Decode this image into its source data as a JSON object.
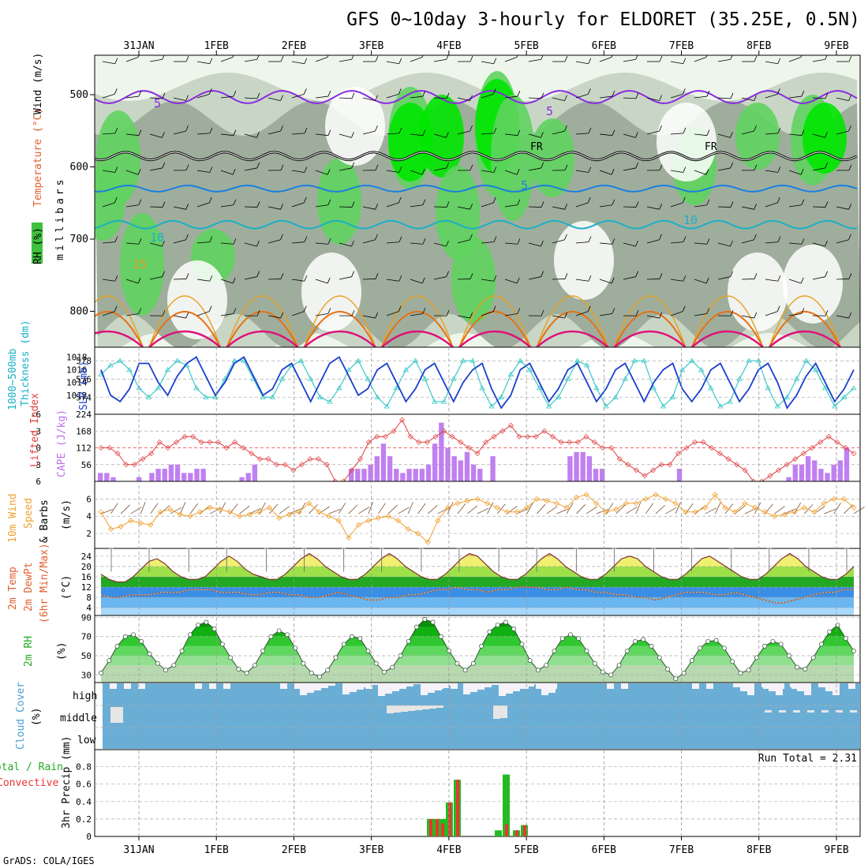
{
  "title": "GFS 0~10day 3-hourly for ELDORET (35.25E, 0.5N)",
  "footer": "GrADS: COLA/IGES",
  "run_total": "Run Total = 2.31",
  "dates": [
    "31JAN",
    "1FEB",
    "2FEB",
    "3FEB",
    "4FEB",
    "5FEB",
    "6FEB",
    "7FEB",
    "8FEB",
    "9FEB"
  ],
  "colors": {
    "rh_light": "#eef6ec",
    "rh_mid": "#c9d6c6",
    "rh_dark": "#9fae9c",
    "rh_green": "#5fd35f",
    "rh_bright": "#00e600",
    "purple": "#8a2be2",
    "cyan": "#1ab0c8",
    "blue": "#1a7fe0",
    "orange": "#e8a020",
    "darkorange": "#e87010",
    "magenta": "#e0107a",
    "slp": "#1a3fcc",
    "thick": "#3cc8c8",
    "cape": "#c080f0",
    "li": "#e04040",
    "wind10": "#f0a030",
    "cloud": "#6aaed6",
    "cloud_bg": "#f4f2f8",
    "precip_total": "#22bb22",
    "precip_conv": "#ee3333"
  },
  "panels": {
    "upper": {
      "labels": {
        "rh": "RH (%)",
        "temp": "Temperature (°C)",
        "wind": "Wind (m/s)",
        "mb": "millibars"
      },
      "yticks": [
        500,
        600,
        700,
        800
      ],
      "contour_labels": {
        "purple": "5",
        "fr": "FR",
        "blue": "5",
        "cyan": "10",
        "orange": "15"
      }
    },
    "thickness": {
      "label1": "1000~500mb",
      "label2": "Thickness (dm)",
      "label3": "SLP (mb)",
      "left_ticks": [
        574,
        576,
        578
      ],
      "right_ticks": [
        1012,
        1014,
        1016,
        1018
      ]
    },
    "cape": {
      "label1": "Lifted Index",
      "label2": "CAPE (J/kg)",
      "left_ticks": [
        "-6",
        "-3",
        "0",
        "3",
        "6"
      ],
      "right_ticks": [
        "56",
        "112",
        "168",
        "224"
      ]
    },
    "wind": {
      "label1": "10m Wind",
      "label2": "Speed",
      "label3": "& Barbs",
      "unit": "(m/s)",
      "ticks": [
        2,
        4,
        6
      ]
    },
    "temp": {
      "label1": "2m Temp",
      "label2": "2m DewPt",
      "label3": "(6hr Min/Max)",
      "unit": "(°C)",
      "ticks": [
        4,
        8,
        12,
        16,
        20,
        24
      ]
    },
    "rh": {
      "label1": "2m RH",
      "unit": "(%)",
      "ticks": [
        30,
        50,
        70,
        90
      ]
    },
    "cloud": {
      "label1": "Cloud Cover",
      "unit": "(%)",
      "levels": [
        "high",
        "middle",
        "low"
      ]
    },
    "precip": {
      "label1": "Total / Rain",
      "label2": "Convective",
      "label3": "3hr Precip (mm)",
      "ticks": [
        "0",
        "0.2",
        "0.4",
        "0.6",
        "0.8"
      ]
    }
  },
  "chart_data": {
    "type": "line",
    "title": "GFS 0~10day 3-hourly for ELDORET (35.25E, 0.5N)",
    "time_step_hours": 3,
    "x_start": "30JAN 18Z",
    "slp_mb": [
      1016,
      1012,
      1011,
      1013,
      1017,
      1017,
      1014,
      1012,
      1015,
      1017,
      1018,
      1015,
      1012,
      1014,
      1017,
      1018,
      1015,
      1012,
      1013,
      1016,
      1017,
      1014,
      1011,
      1014,
      1017,
      1018,
      1015,
      1012,
      1013,
      1016,
      1017,
      1014,
      1011,
      1013,
      1016,
      1017,
      1014,
      1011,
      1014,
      1016,
      1017,
      1013,
      1010,
      1012,
      1016,
      1017,
      1014,
      1011,
      1013,
      1016,
      1017,
      1014,
      1011,
      1013,
      1016,
      1017,
      1014,
      1011,
      1014,
      1016,
      1017,
      1013,
      1011,
      1013,
      1016,
      1017,
      1014,
      1011,
      1013,
      1016,
      1017,
      1014,
      1010,
      1012,
      1015,
      1017,
      1014,
      1011,
      1013,
      1016
    ],
    "thickness_dm": [
      576.5,
      577.5,
      578,
      577,
      575,
      574,
      575,
      577,
      578,
      577.5,
      575,
      574,
      574,
      576,
      578,
      578,
      576,
      574,
      574,
      576,
      577.5,
      578,
      576,
      574,
      573.5,
      575,
      577,
      578,
      576,
      574,
      573,
      575,
      577,
      578,
      576,
      573.5,
      573.5,
      576,
      578,
      578,
      575,
      573,
      574,
      576.5,
      578,
      577,
      575,
      573,
      574,
      576,
      578,
      577.5,
      575,
      573,
      574,
      576,
      578,
      578,
      575,
      573,
      574,
      577,
      578,
      577,
      575,
      573,
      573.5,
      576,
      578,
      578,
      575,
      573,
      574,
      576,
      578,
      577,
      575,
      573,
      574,
      575
    ],
    "cape_jkg": [
      28,
      28,
      14,
      0,
      0,
      0,
      14,
      0,
      28,
      42,
      42,
      56,
      56,
      28,
      28,
      42,
      42,
      0,
      0,
      0,
      0,
      0,
      14,
      28,
      56,
      0,
      0,
      0,
      0,
      0,
      0,
      0,
      0,
      0,
      0,
      0,
      0,
      0,
      0,
      42,
      42,
      42,
      56,
      84,
      126,
      84,
      42,
      28,
      42,
      42,
      42,
      56,
      126,
      196,
      112,
      84,
      70,
      98,
      56,
      42,
      0,
      84,
      0,
      0,
      0,
      0,
      0,
      0,
      0,
      0,
      0,
      0,
      0,
      84,
      98,
      98,
      84,
      42,
      42,
      0,
      0,
      0,
      0,
      0,
      0,
      0,
      0,
      0,
      0,
      0,
      42,
      0,
      0,
      0,
      0,
      0,
      0,
      0,
      0,
      0,
      0,
      0,
      0,
      0,
      0,
      0,
      0,
      14,
      56,
      56,
      84,
      70,
      42,
      28,
      56,
      70,
      112
    ],
    "lifted_index": [
      0,
      0,
      1,
      3,
      3,
      2,
      1,
      -1,
      0,
      -1,
      -2,
      -2,
      -1,
      -1,
      -1,
      0,
      -1,
      0,
      1,
      2,
      2,
      3,
      3,
      4,
      3,
      2,
      2,
      3,
      6,
      6,
      4,
      2,
      -1,
      -2,
      -2,
      -3,
      -5,
      -2,
      -1,
      -1,
      -2,
      -3,
      -2,
      -1,
      0,
      1,
      -1,
      -2,
      -3,
      -4,
      -2,
      -2,
      -2,
      -3,
      -2,
      -1,
      -1,
      -1,
      -2,
      -1,
      0,
      0,
      2,
      3,
      4,
      5,
      4,
      3,
      3,
      1,
      0,
      -1,
      -1,
      0,
      1,
      2,
      3,
      4,
      6,
      6,
      5,
      4,
      3,
      2,
      1,
      0,
      -1,
      -2,
      -1,
      0,
      1
    ],
    "wind10_ms": [
      4.5,
      2.5,
      2.8,
      3.5,
      3.2,
      3.0,
      4.5,
      4.8,
      4.2,
      4.0,
      4.5,
      5.0,
      4.8,
      4.5,
      4.0,
      4.2,
      4.5,
      5.0,
      3.8,
      4.2,
      4.5,
      5.5,
      4.5,
      4.0,
      3.5,
      1.5,
      3.0,
      3.5,
      3.8,
      4.0,
      3.5,
      2.5,
      2.0,
      1.0,
      3.5,
      5.0,
      5.5,
      5.8,
      6.0,
      5.5,
      5.0,
      4.5,
      4.5,
      5.0,
      6.0,
      5.8,
      5.5,
      5.0,
      6.2,
      6.5,
      5.5,
      4.5,
      4.8,
      5.5,
      5.5,
      6.0,
      6.5,
      6.0,
      5.5,
      4.5,
      4.5,
      5.0,
      6.5,
      5.0,
      4.5,
      5.5,
      5.0,
      4.5,
      4.0,
      4.2,
      4.5,
      5.0,
      4.5,
      5.5,
      6.0,
      6.0,
      5.0
    ],
    "temp2m_c": [
      17,
      15,
      14,
      14,
      16,
      19,
      22,
      23,
      21,
      18,
      16,
      15,
      15,
      16,
      19,
      22,
      24,
      22,
      19,
      17,
      16,
      15,
      15,
      17,
      20,
      23,
      25,
      23,
      20,
      18,
      16,
      15,
      15,
      17,
      20,
      23,
      25,
      23,
      20,
      18,
      16,
      15,
      15,
      17,
      20,
      23,
      25,
      24,
      21,
      18,
      16,
      15,
      15,
      17,
      20,
      23,
      25,
      23,
      20,
      18,
      16,
      15,
      15,
      17,
      20,
      23,
      24,
      23,
      20,
      18,
      16,
      15,
      15,
      17,
      20,
      23,
      24,
      22,
      20,
      18,
      16,
      15,
      15,
      17,
      20,
      23,
      25,
      23,
      20,
      18,
      16,
      15,
      15,
      17,
      20
    ],
    "dewpt2m_c": [
      9,
      8,
      8,
      9,
      9,
      9,
      10,
      10,
      10,
      11,
      11,
      11,
      10,
      10,
      10,
      9,
      9,
      10,
      10,
      9,
      9,
      8,
      8,
      9,
      10,
      9,
      8,
      7,
      7,
      8,
      8,
      9,
      9,
      10,
      11,
      11,
      12,
      11,
      11,
      10,
      11,
      11,
      12,
      12,
      12,
      11,
      11,
      12,
      11,
      11,
      10,
      10,
      9,
      9,
      8,
      8,
      7,
      8,
      9,
      10,
      10,
      10,
      9,
      9,
      10,
      9,
      8,
      7,
      6,
      6,
      7,
      8,
      9,
      10,
      10,
      11,
      11
    ],
    "rh2m_pct": [
      32,
      45,
      60,
      70,
      72,
      65,
      52,
      42,
      35,
      40,
      55,
      72,
      82,
      85,
      78,
      62,
      48,
      36,
      32,
      40,
      55,
      70,
      76,
      72,
      58,
      42,
      32,
      28,
      35,
      48,
      62,
      70,
      68,
      55,
      42,
      33,
      38,
      50,
      65,
      80,
      88,
      85,
      70,
      55,
      42,
      35,
      42,
      60,
      75,
      82,
      85,
      78,
      62,
      45,
      35,
      40,
      55,
      68,
      72,
      68,
      55,
      42,
      33,
      30,
      40,
      55,
      65,
      67,
      60,
      48,
      36,
      26,
      32,
      45,
      58,
      65,
      66,
      58,
      44,
      32,
      35,
      48,
      60,
      65,
      62,
      50,
      38,
      36,
      48,
      62,
      75,
      82,
      68,
      55
    ]
  }
}
